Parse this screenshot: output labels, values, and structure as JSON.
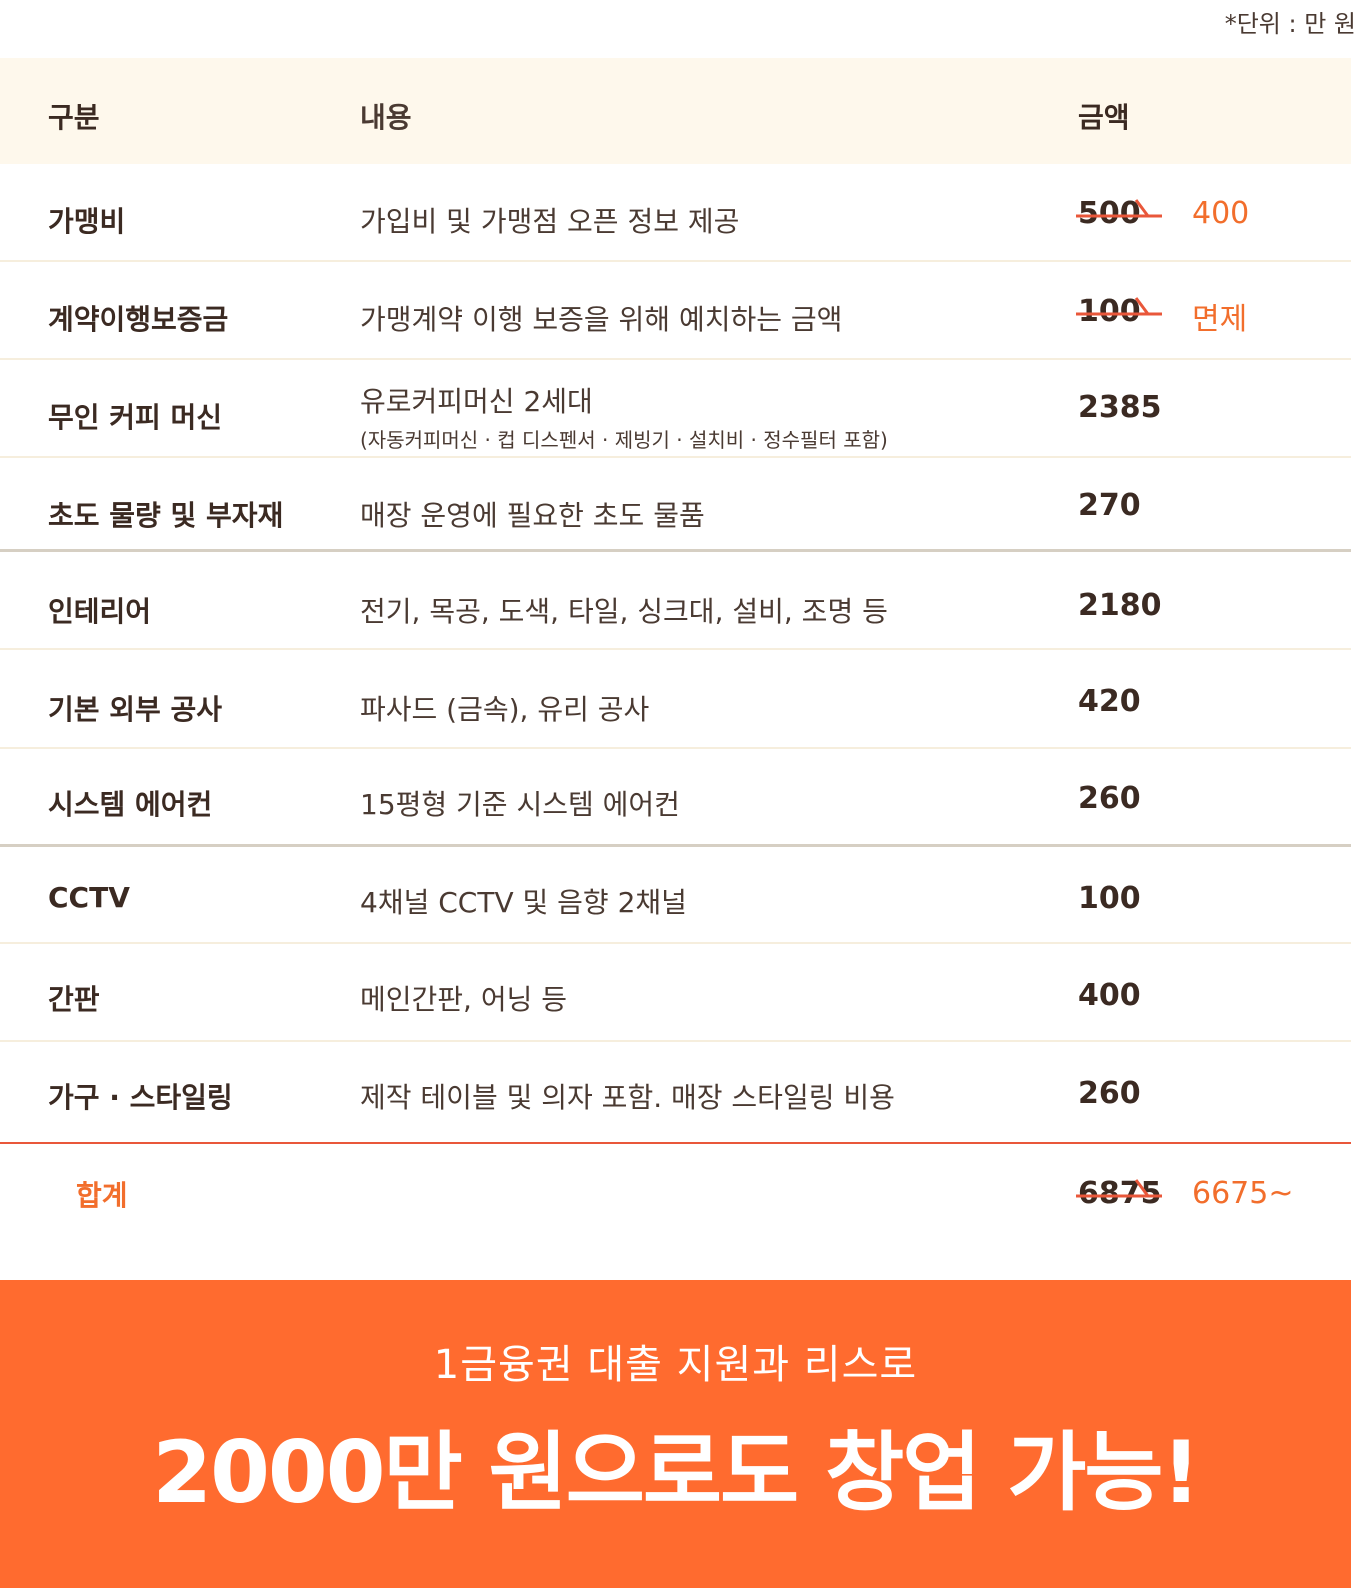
{
  "unit_note": "*단위 : 만 원",
  "header": {
    "col1": "구분",
    "col2": "내용",
    "col3": "금액"
  },
  "rows": [
    {
      "name": "가맹비",
      "desc": "가입비 및 가맹점 오픈 정보 제공",
      "amount_old": "500",
      "amount_new": "400"
    },
    {
      "name": "계약이행보증금",
      "desc": "가맹계약 이행 보증을 위해 예치하는 금액",
      "amount_old": "100",
      "amount_new": "면제"
    },
    {
      "name": "무인 커피 머신",
      "desc": "유로커피머신 2세대",
      "desc_sub": "(자동커피머신 · 컵 디스펜서 · 제빙기 · 설치비 · 정수필터 포함)",
      "amount": "2385"
    },
    {
      "name": "초도 물량 및 부자재",
      "desc": "매장 운영에 필요한 초도 물품",
      "amount": "270"
    },
    {
      "name": "인테리어",
      "desc": "전기, 목공, 도색, 타일, 싱크대, 설비, 조명 등",
      "amount": "2180"
    },
    {
      "name": "기본 외부 공사",
      "desc": "파사드 (금속), 유리 공사",
      "amount": "420"
    },
    {
      "name": "시스템 에어컨",
      "desc": "15평형 기준 시스템 에어컨",
      "amount": "260"
    },
    {
      "name": "CCTV",
      "desc": "4채널 CCTV 및 음향 2채널",
      "amount": "100"
    },
    {
      "name": "간판",
      "desc": "메인간판, 어닝 등",
      "amount": "400"
    },
    {
      "name": "가구 · 스타일링",
      "desc": "제작 테이블 및 의자 포함. 매장 스타일링 비용",
      "amount": "260"
    }
  ],
  "total": {
    "label": "합계",
    "amount_old": "6875",
    "amount_new": "6675~"
  },
  "banner": {
    "line1": "1금융권 대출 지원과 리스로",
    "line2": "2000만 원으로도 창업 가능!"
  },
  "colors": {
    "accent": "#ff6b2f",
    "text": "#3b2a22",
    "header_bg": "#fef8ec"
  }
}
